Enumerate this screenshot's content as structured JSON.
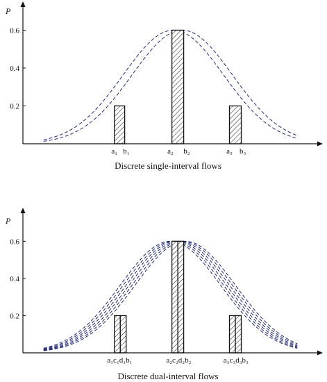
{
  "chart_data": [
    {
      "type": "bar",
      "caption": "Discrete single-interval flows",
      "ylabel": "P",
      "yticks": [
        0.2,
        0.4,
        0.6
      ],
      "ylim": [
        0,
        0.62
      ],
      "xlim": [
        0,
        10
      ],
      "bars": [
        {
          "x0": 3.1,
          "x1": 3.45,
          "value": 0.2
        },
        {
          "x0": 5.05,
          "x1": 5.45,
          "value": 0.6
        },
        {
          "x0": 7.0,
          "x1": 7.4,
          "value": 0.2
        }
      ],
      "x_tick_labels": [
        {
          "text": "a₁",
          "x": 3.1
        },
        {
          "text": "b₁",
          "x": 3.5
        },
        {
          "text": "a₂",
          "x": 5.0
        },
        {
          "text": "b₂",
          "x": 5.55
        },
        {
          "text": "a₃",
          "x": 7.0
        },
        {
          "text": "b₃",
          "x": 7.45
        }
      ],
      "curves": [
        {
          "mean": 5.1,
          "sd": 1.7,
          "peak": 0.6
        },
        {
          "mean": 5.4,
          "sd": 1.7,
          "peak": 0.6
        }
      ],
      "bar_hatch": "diagonal",
      "curve_style": "dashed",
      "curve_color": "#1e2a78",
      "grid": false
    },
    {
      "type": "bar",
      "caption": "Discrete dual-interval flows",
      "ylabel": "P",
      "yticks": [
        0.2,
        0.4,
        0.6
      ],
      "ylim": [
        0,
        0.62
      ],
      "xlim": [
        0,
        10
      ],
      "bars": [
        {
          "x0": 3.1,
          "x1": 3.3,
          "value": 0.2
        },
        {
          "x0": 3.3,
          "x1": 3.5,
          "value": 0.2
        },
        {
          "x0": 5.05,
          "x1": 5.25,
          "value": 0.6
        },
        {
          "x0": 5.25,
          "x1": 5.45,
          "value": 0.6
        },
        {
          "x0": 7.0,
          "x1": 7.2,
          "value": 0.2
        },
        {
          "x0": 7.2,
          "x1": 7.4,
          "value": 0.2
        }
      ],
      "x_tick_labels": [
        {
          "text": "a₁c₁d₁b₁",
          "x": 3.28
        },
        {
          "text": "a₂c₂d₂b₂",
          "x": 5.28
        },
        {
          "text": "a₃c₃d₃b₃",
          "x": 7.22
        }
      ],
      "curves": [
        {
          "mean": 5.0,
          "sd": 1.7,
          "peak": 0.6
        },
        {
          "mean": 5.1,
          "sd": 1.7,
          "peak": 0.6
        },
        {
          "mean": 5.2,
          "sd": 1.7,
          "peak": 0.6
        },
        {
          "mean": 5.3,
          "sd": 1.7,
          "peak": 0.6
        },
        {
          "mean": 5.4,
          "sd": 1.7,
          "peak": 0.6
        },
        {
          "mean": 5.5,
          "sd": 1.7,
          "peak": 0.6
        }
      ],
      "bar_hatch": "diagonal",
      "curve_style": "dashed",
      "curve_color": "#1e2a78",
      "grid": false
    }
  ]
}
